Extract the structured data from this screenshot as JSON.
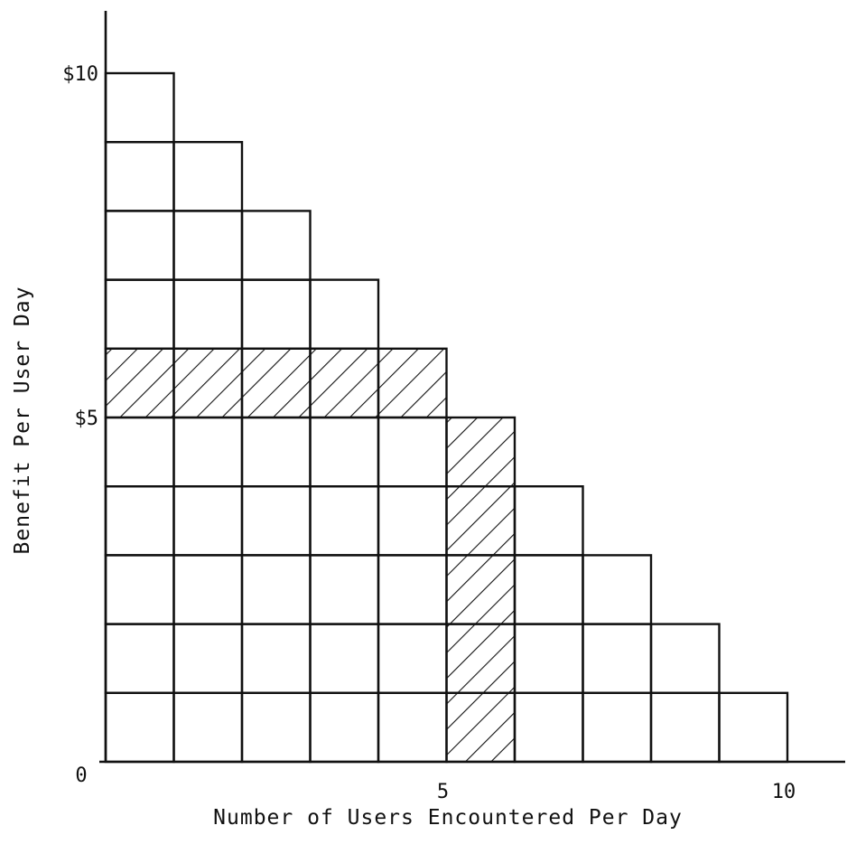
{
  "chart_data": {
    "type": "bar",
    "description_kind": "stepped unit-block diagram",
    "x": [
      1,
      2,
      3,
      4,
      5,
      6,
      7,
      8,
      9,
      10
    ],
    "values": [
      10,
      9,
      8,
      7,
      6,
      5,
      4,
      3,
      2,
      1
    ],
    "xlabel": "Number of Users Encountered Per Day",
    "ylabel": "Benefit Per User Day",
    "xlim": [
      0,
      10.8
    ],
    "ylim": [
      0,
      11
    ],
    "x_ticks": [
      {
        "value": 0,
        "label": "0"
      },
      {
        "value": 5,
        "label": "5"
      },
      {
        "value": 10,
        "label": "10"
      }
    ],
    "y_ticks": [
      {
        "value": 5,
        "label": "$5"
      },
      {
        "value": 10,
        "label": "$10"
      }
    ],
    "hatched_regions": [
      {
        "x_from": 0,
        "x_to": 5,
        "y_from": 5,
        "y_to": 6
      },
      {
        "x_from": 5,
        "x_to": 6,
        "y_from": 0,
        "y_to": 5
      }
    ],
    "grid": false,
    "legend": "none"
  }
}
